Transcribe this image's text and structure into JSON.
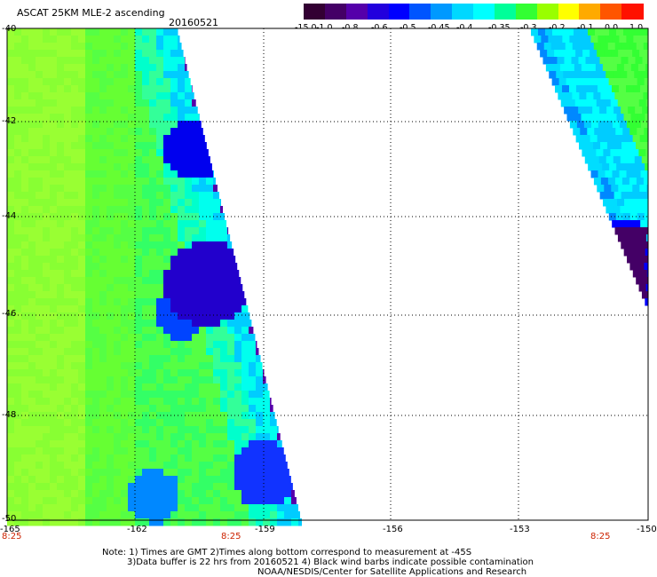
{
  "header": {
    "title": "ASCAT 25KM MLE-2 ascending",
    "date": "20160521"
  },
  "colorbar": {
    "labels": [
      "-15.0",
      "-1.0",
      "-0.8",
      "-0.6",
      "-0.5",
      "-0.45",
      "-0.4",
      "-0.35",
      "-0.3",
      "-0.2",
      "-0.1",
      "0.0",
      "1.0"
    ],
    "colors": [
      "#330033",
      "#440066",
      "#5500aa",
      "#2200dd",
      "#0000ff",
      "#0055ff",
      "#0099ff",
      "#00d8ff",
      "#00ffff",
      "#00ff99",
      "#33ff33",
      "#99ff00",
      "#ffff00",
      "#ffaa00",
      "#ff5500",
      "#ff1100"
    ]
  },
  "axes": {
    "x_ticks": [
      "-165",
      "-162",
      "-159",
      "-156",
      "-153",
      "-150"
    ],
    "y_ticks": [
      "-40",
      "-42",
      "-44",
      "-46",
      "-48",
      "-50"
    ],
    "lon_range": [
      -165,
      -150
    ],
    "lat_range": [
      -40,
      -50
    ],
    "grid": "dotted"
  },
  "times": [
    "8:25",
    "8:25",
    "8:25"
  ],
  "notes": {
    "line1": "Note: 1) Times are GMT 2)Times along bottom correspond to measurement at -45S",
    "line2": "3)Data buffer is 22 hrs from 20160521 4) Black wind barbs indicate possible contamination",
    "line3": "NOAA/NESDIS/Center for Satellite Applications and Research"
  },
  "swaths": {
    "left": {
      "description_colors": [
        "#99ff33",
        "#66ff33",
        "#33ff66",
        "#00ffcc",
        "#0066ff",
        "#2200dd",
        "#440066"
      ]
    },
    "right": {
      "description_colors": [
        "#33ff33",
        "#00ffff",
        "#0099ff",
        "#0000ff",
        "#440066"
      ]
    }
  }
}
